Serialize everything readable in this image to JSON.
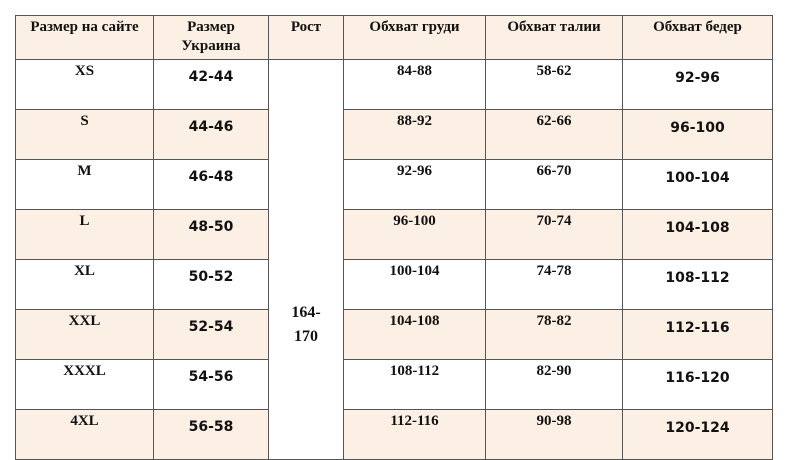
{
  "table": {
    "headers": [
      "Размер на сайте",
      "Размер Украина",
      "Рост",
      "Обхват груди",
      "Обхват талии",
      "Обхват бедер"
    ],
    "height_value": "164-\n170",
    "rows": [
      {
        "site": "XS",
        "ukraine": "42-44",
        "chest": "84-88",
        "waist": "58-62",
        "hips": "92-96"
      },
      {
        "site": "S",
        "ukraine": "44-46",
        "chest": "88-92",
        "waist": "62-66",
        "hips": "96-100"
      },
      {
        "site": "M",
        "ukraine": "46-48",
        "chest": "92-96",
        "waist": "66-70",
        "hips": "100-104"
      },
      {
        "site": "L",
        "ukraine": "48-50",
        "chest": "96-100",
        "waist": "70-74",
        "hips": "104-108"
      },
      {
        "site": "XL",
        "ukraine": "50-52",
        "chest": "100-104",
        "waist": "74-78",
        "hips": "108-112"
      },
      {
        "site": "XXL",
        "ukraine": "52-54",
        "chest": "104-108",
        "waist": "78-82",
        "hips": "112-116"
      },
      {
        "site": "XXXL",
        "ukraine": "54-56",
        "chest": "108-112",
        "waist": "82-90",
        "hips": "116-120"
      },
      {
        "site": "4XL",
        "ukraine": "56-58",
        "chest": "112-116",
        "waist": "90-98",
        "hips": "120-124"
      }
    ]
  },
  "colors": {
    "header_bg": "#fcefe3",
    "alt_row_bg": "#fcefe3",
    "border": "#555555"
  }
}
